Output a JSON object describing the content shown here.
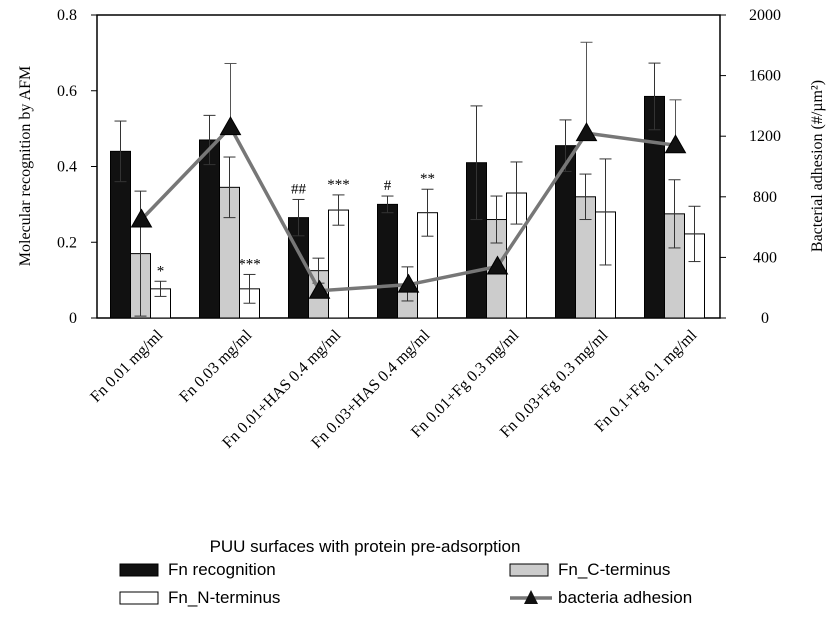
{
  "chart_data": {
    "type": "bar",
    "xlabel": "PUU surfaces with protein pre-adsorption",
    "ylabel_left": "Molecular recognition by AFM",
    "ylabel_right": "Bacterial adhesion (#/µm²)",
    "ylim_left": [
      0,
      0.8
    ],
    "ylim_right": [
      0,
      2000
    ],
    "yticks_left": [
      "0",
      "0.2",
      "0.4",
      "0.6",
      "0.8"
    ],
    "yticks_right": [
      "0",
      "400",
      "800",
      "1200",
      "1600",
      "2000"
    ],
    "categories": [
      "Fn 0.01 mg/ml",
      "Fn 0.03 mg/ml",
      "Fn 0.01+HAS 0.4  mg/ml",
      "Fn 0.03+HAS 0.4  mg/ml",
      "Fn 0.01+Fg 0.3 mg/ml",
      "Fn 0.03+Fg 0.3 mg/ml",
      "Fn 0.1+Fg 0.1 mg/ml"
    ],
    "series": [
      {
        "name": "Fn recognition",
        "axis": "left",
        "color": "#111111",
        "values": [
          0.44,
          0.47,
          0.265,
          0.3,
          0.41,
          0.455,
          0.585
        ],
        "errors": [
          0.08,
          0.065,
          0.048,
          0.022,
          0.15,
          0.068,
          0.088
        ]
      },
      {
        "name": "Fn_C-terminus",
        "axis": "left",
        "color": "#cccccc",
        "values": [
          0.17,
          0.345,
          0.125,
          0.09,
          0.26,
          0.32,
          0.275
        ],
        "errors": [
          0.165,
          0.08,
          0.033,
          0.045,
          0.062,
          0.06,
          0.09
        ]
      },
      {
        "name": "Fn_N-terminus",
        "axis": "left",
        "color": "#ffffff",
        "values": [
          0.077,
          0.077,
          0.285,
          0.278,
          0.33,
          0.28,
          0.222
        ],
        "errors": [
          0.02,
          0.038,
          0.04,
          0.062,
          0.082,
          0.14,
          0.073
        ]
      },
      {
        "name": "bacteria adhesion",
        "axis": "right",
        "type": "line",
        "color": "#777777",
        "values": [
          650,
          1260,
          180,
          220,
          340,
          1220,
          1140
        ],
        "errors": [
          0,
          420,
          0,
          0,
          0,
          600,
          300
        ]
      }
    ],
    "annotations": [
      {
        "category": 0,
        "series": 2,
        "text": "*"
      },
      {
        "category": 1,
        "series": 2,
        "text": "***"
      },
      {
        "category": 2,
        "series": 0,
        "text": "##"
      },
      {
        "category": 2,
        "series": 2,
        "text": "***"
      },
      {
        "category": 3,
        "series": 0,
        "text": "#"
      },
      {
        "category": 3,
        "series": 2,
        "text": "**"
      }
    ],
    "legend": {
      "placement": "bottom",
      "items": [
        "Fn recognition",
        "Fn_C-terminus",
        "Fn_N-terminus",
        "bacteria adhesion"
      ]
    },
    "grid": false
  }
}
